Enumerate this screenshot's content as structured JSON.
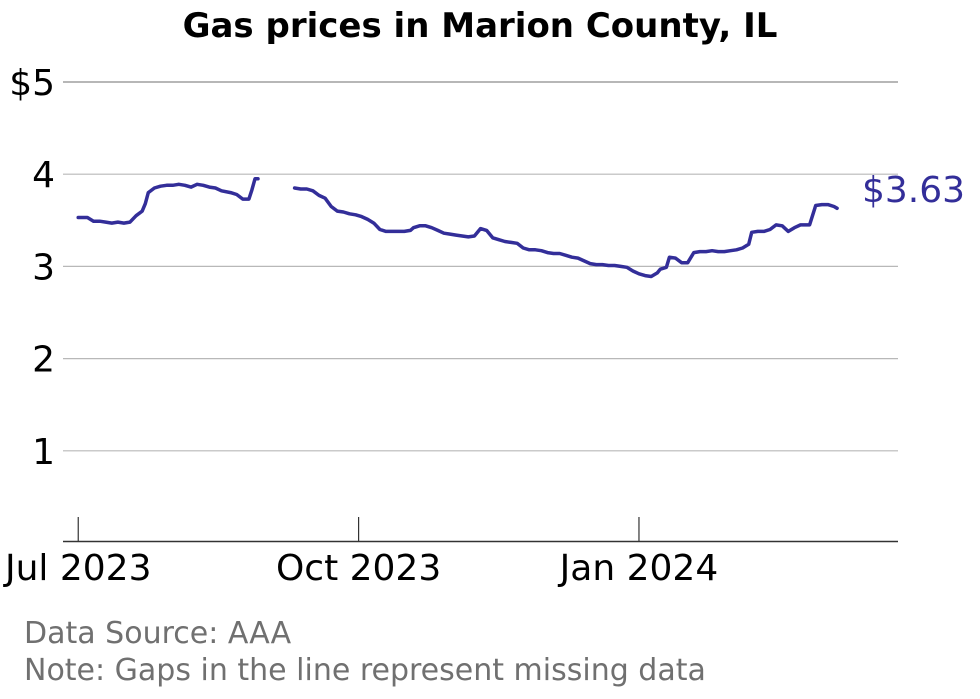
{
  "chart_data": {
    "type": "line",
    "title": "Gas prices in Marion County, IL",
    "xlabel": "",
    "ylabel": "",
    "ylim": [
      0,
      5
    ],
    "xlim": [
      "2023-06-26",
      "2024-03-26"
    ],
    "y_ticks": [
      {
        "value": 5,
        "label": "$5"
      },
      {
        "value": 4,
        "label": "4"
      },
      {
        "value": 3,
        "label": "3"
      },
      {
        "value": 2,
        "label": "2"
      },
      {
        "value": 1,
        "label": "1"
      }
    ],
    "x_ticks": [
      {
        "date": "2023-07-01",
        "label": "Jul 2023"
      },
      {
        "date": "2023-10-01",
        "label": "Oct 2023"
      },
      {
        "date": "2024-01-01",
        "label": "Jan 2024"
      }
    ],
    "grid": true,
    "line_color": "#332e99",
    "end_label": "$3.63",
    "series": [
      {
        "segments": [
          [
            [
              "2023-07-01",
              3.53
            ],
            [
              "2023-07-03",
              3.53
            ],
            [
              "2023-07-04",
              3.53
            ],
            [
              "2023-07-06",
              3.49
            ],
            [
              "2023-07-08",
              3.49
            ],
            [
              "2023-07-10",
              3.48
            ],
            [
              "2023-07-12",
              3.47
            ],
            [
              "2023-07-14",
              3.48
            ],
            [
              "2023-07-16",
              3.47
            ],
            [
              "2023-07-18",
              3.48
            ],
            [
              "2023-07-20",
              3.55
            ],
            [
              "2023-07-22",
              3.6
            ],
            [
              "2023-07-23",
              3.68
            ],
            [
              "2023-07-24",
              3.8
            ],
            [
              "2023-07-26",
              3.85
            ],
            [
              "2023-07-28",
              3.87
            ],
            [
              "2023-07-30",
              3.88
            ],
            [
              "2023-08-01",
              3.88
            ],
            [
              "2023-08-03",
              3.89
            ],
            [
              "2023-08-05",
              3.88
            ],
            [
              "2023-08-07",
              3.86
            ],
            [
              "2023-08-09",
              3.89
            ],
            [
              "2023-08-11",
              3.88
            ],
            [
              "2023-08-13",
              3.86
            ],
            [
              "2023-08-15",
              3.85
            ],
            [
              "2023-08-17",
              3.82
            ],
            [
              "2023-08-20",
              3.8
            ],
            [
              "2023-08-22",
              3.78
            ],
            [
              "2023-08-24",
              3.73
            ],
            [
              "2023-08-26",
              3.73
            ],
            [
              "2023-08-27",
              3.83
            ],
            [
              "2023-08-28",
              3.95
            ],
            [
              "2023-08-29",
              3.95
            ]
          ],
          [
            [
              "2023-09-10",
              3.85
            ],
            [
              "2023-09-12",
              3.84
            ],
            [
              "2023-09-14",
              3.84
            ],
            [
              "2023-09-16",
              3.82
            ],
            [
              "2023-09-18",
              3.77
            ],
            [
              "2023-09-20",
              3.74
            ],
            [
              "2023-09-22",
              3.65
            ],
            [
              "2023-09-24",
              3.6
            ],
            [
              "2023-09-26",
              3.59
            ],
            [
              "2023-09-28",
              3.57
            ],
            [
              "2023-09-30",
              3.56
            ],
            [
              "2023-10-02",
              3.54
            ],
            [
              "2023-10-04",
              3.51
            ],
            [
              "2023-10-06",
              3.47
            ],
            [
              "2023-10-08",
              3.4
            ],
            [
              "2023-10-10",
              3.38
            ],
            [
              "2023-10-12",
              3.38
            ],
            [
              "2023-10-14",
              3.38
            ],
            [
              "2023-10-16",
              3.38
            ],
            [
              "2023-10-18",
              3.39
            ],
            [
              "2023-10-19",
              3.42
            ],
            [
              "2023-10-21",
              3.44
            ],
            [
              "2023-10-23",
              3.44
            ],
            [
              "2023-10-25",
              3.42
            ],
            [
              "2023-10-27",
              3.39
            ],
            [
              "2023-10-29",
              3.36
            ],
            [
              "2023-10-31",
              3.35
            ],
            [
              "2023-11-02",
              3.34
            ],
            [
              "2023-11-04",
              3.33
            ],
            [
              "2023-11-06",
              3.32
            ],
            [
              "2023-11-08",
              3.33
            ],
            [
              "2023-11-10",
              3.41
            ],
            [
              "2023-11-12",
              3.39
            ],
            [
              "2023-11-14",
              3.31
            ],
            [
              "2023-11-16",
              3.29
            ],
            [
              "2023-11-18",
              3.27
            ],
            [
              "2023-11-20",
              3.26
            ],
            [
              "2023-11-22",
              3.25
            ],
            [
              "2023-11-24",
              3.2
            ],
            [
              "2023-11-26",
              3.18
            ],
            [
              "2023-11-28",
              3.18
            ],
            [
              "2023-11-30",
              3.17
            ],
            [
              "2023-12-02",
              3.15
            ],
            [
              "2023-12-04",
              3.14
            ],
            [
              "2023-12-06",
              3.14
            ],
            [
              "2023-12-08",
              3.12
            ],
            [
              "2023-12-10",
              3.1
            ],
            [
              "2023-12-12",
              3.09
            ],
            [
              "2023-12-14",
              3.06
            ],
            [
              "2023-12-16",
              3.03
            ],
            [
              "2023-12-18",
              3.02
            ],
            [
              "2023-12-20",
              3.02
            ],
            [
              "2023-12-22",
              3.01
            ],
            [
              "2023-12-24",
              3.01
            ],
            [
              "2023-12-26",
              3.0
            ],
            [
              "2023-12-28",
              2.99
            ],
            [
              "2023-12-30",
              2.95
            ],
            [
              "2024-01-01",
              2.92
            ],
            [
              "2024-01-03",
              2.9
            ],
            [
              "2024-01-05",
              2.89
            ],
            [
              "2024-01-07",
              2.93
            ],
            [
              "2024-01-08",
              2.97
            ],
            [
              "2024-01-10",
              2.99
            ],
            [
              "2024-01-11",
              3.1
            ],
            [
              "2024-01-13",
              3.09
            ],
            [
              "2024-01-15",
              3.04
            ],
            [
              "2024-01-17",
              3.04
            ],
            [
              "2024-01-19",
              3.15
            ],
            [
              "2024-01-21",
              3.16
            ],
            [
              "2024-01-23",
              3.16
            ],
            [
              "2024-01-25",
              3.17
            ],
            [
              "2024-01-27",
              3.16
            ],
            [
              "2024-01-29",
              3.16
            ],
            [
              "2024-01-31",
              3.17
            ],
            [
              "2024-02-02",
              3.18
            ],
            [
              "2024-02-04",
              3.2
            ],
            [
              "2024-02-06",
              3.24
            ],
            [
              "2024-02-07",
              3.37
            ],
            [
              "2024-02-09",
              3.38
            ],
            [
              "2024-02-11",
              3.38
            ],
            [
              "2024-02-13",
              3.4
            ],
            [
              "2024-02-15",
              3.45
            ],
            [
              "2024-02-17",
              3.44
            ],
            [
              "2024-02-19",
              3.38
            ],
            [
              "2024-02-21",
              3.42
            ],
            [
              "2024-02-23",
              3.45
            ],
            [
              "2024-02-25",
              3.45
            ],
            [
              "2024-02-26",
              3.45
            ],
            [
              "2024-02-28",
              3.66
            ],
            [
              "2024-03-01",
              3.67
            ],
            [
              "2024-03-03",
              3.67
            ],
            [
              "2024-03-05",
              3.65
            ],
            [
              "2024-03-06",
              3.63
            ]
          ]
        ]
      }
    ]
  },
  "footer": {
    "source": "Data Source: AAA",
    "note": "Note: Gaps in the line represent missing data"
  }
}
